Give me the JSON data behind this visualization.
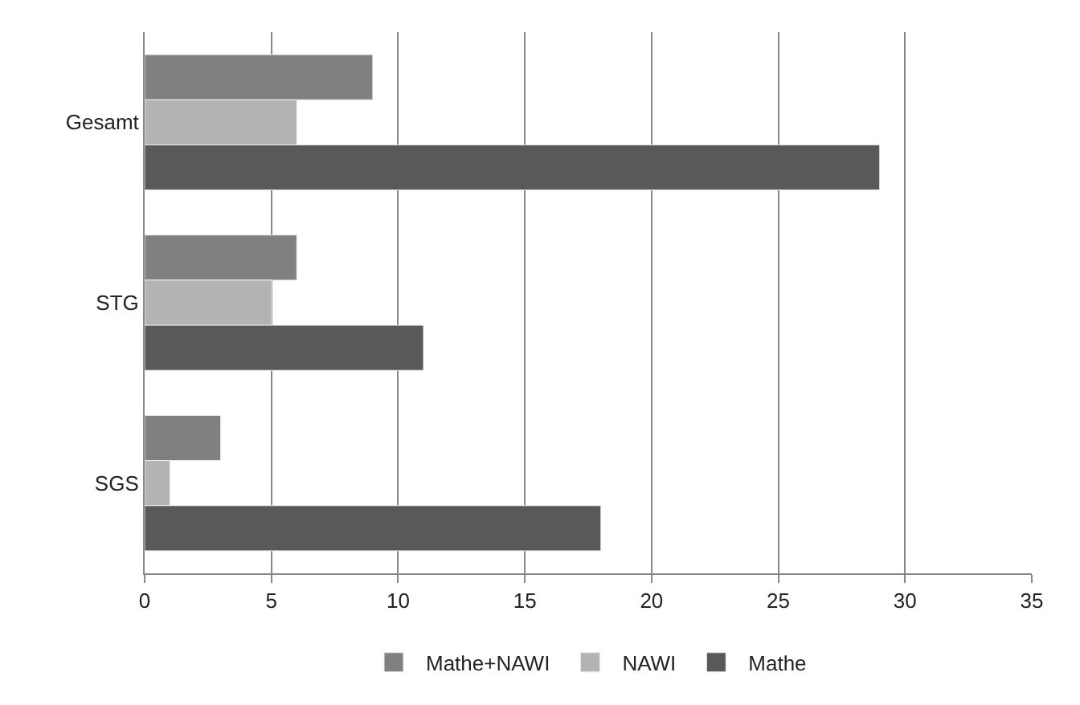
{
  "chart_data": {
    "type": "bar",
    "orientation": "horizontal",
    "categories": [
      "Gesamt",
      "STG",
      "SGS"
    ],
    "series": [
      {
        "name": "Mathe+NAWI",
        "color": "#808080",
        "values": [
          9,
          6,
          3
        ]
      },
      {
        "name": "NAWI",
        "color": "#b3b3b3",
        "values": [
          6,
          5,
          1
        ]
      },
      {
        "name": "Mathe",
        "color": "#595959",
        "values": [
          29,
          11,
          18
        ]
      }
    ],
    "xlim": [
      0,
      35
    ],
    "xticks": [
      0,
      5,
      10,
      15,
      20,
      25,
      30,
      35
    ],
    "grid": "x",
    "legend": "bottom"
  }
}
